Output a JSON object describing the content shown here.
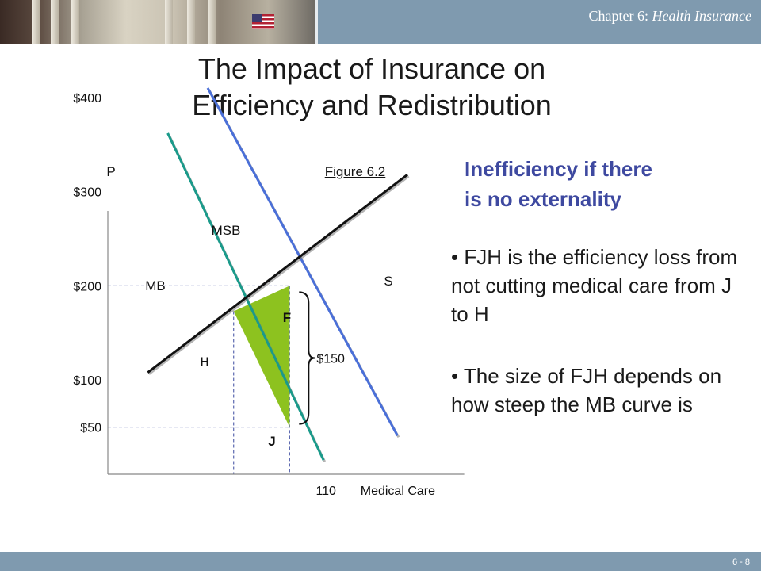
{
  "header": {
    "chapter_prefix": "Chapter 6: ",
    "chapter_title": "Health Insurance"
  },
  "title": {
    "line1": "The Impact of Insurance on",
    "line2": "Efficiency and Redistribution"
  },
  "side_text": {
    "heading_line1": "Inefficiency if there",
    "heading_line2": "is no externality",
    "bullet1": "• FJH is the efficiency loss from not cutting medical care from J to H",
    "bullet2": "• The size of FJH depends on how steep the MB curve is"
  },
  "footer": {
    "page": "6 - 8"
  },
  "colors": {
    "bar": "#7f9aaf",
    "heading": "#3e49a0",
    "msb_line": "#4a6fd8",
    "mb_line": "#1a9a8a",
    "s_line": "#111111",
    "triangle": "#8dc21f"
  },
  "chart_data": {
    "type": "line",
    "title": "Figure 6.2",
    "xlabel": "Medical Care",
    "ylabel": "P",
    "y_ticks": [
      {
        "value": 400,
        "label": "$400"
      },
      {
        "value": 300,
        "label": "$300"
      },
      {
        "value": 200,
        "label": "$200"
      },
      {
        "value": 100,
        "label": "$100"
      },
      {
        "value": 50,
        "label": "$50"
      }
    ],
    "x_ticks": [
      {
        "value": 110,
        "label": "110"
      }
    ],
    "xlim": [
      0,
      180
    ],
    "ylim": [
      0,
      450
    ],
    "series": [
      {
        "name": "MSB",
        "points": [
          [
            50,
            410
          ],
          [
            145,
            41
          ]
        ]
      },
      {
        "name": "MB",
        "points": [
          [
            30,
            362
          ],
          [
            108,
            15
          ]
        ]
      },
      {
        "name": "S",
        "points": [
          [
            20,
            108
          ],
          [
            150,
            318
          ]
        ]
      }
    ],
    "points": [
      {
        "label": "F",
        "x": 91,
        "y": 200
      },
      {
        "label": "H",
        "x": 63,
        "y": 173
      },
      {
        "label": "J",
        "x": 91,
        "y": 50
      }
    ],
    "shaded_region": "FJH",
    "brace_label": "$150"
  }
}
